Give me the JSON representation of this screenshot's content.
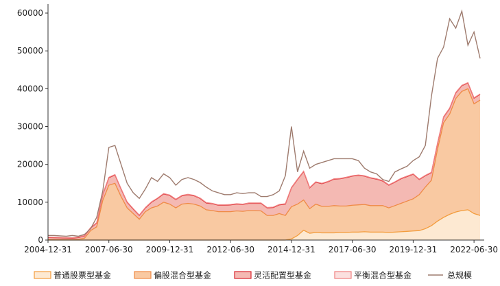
{
  "chart_data": {
    "type": "area",
    "title": "",
    "xlabel": "",
    "ylabel": "",
    "ylim": [
      0,
      62000
    ],
    "yticks": [
      0,
      10000,
      20000,
      30000,
      40000,
      50000,
      60000
    ],
    "xticks": [
      {
        "pos": 0,
        "label": "2004-12-31"
      },
      {
        "pos": 10,
        "label": "2007-06-30"
      },
      {
        "pos": 20,
        "label": "2009-12-31"
      },
      {
        "pos": 30,
        "label": "2012-06-30"
      },
      {
        "pos": 40,
        "label": "2014-12-31"
      },
      {
        "pos": 50,
        "label": "2017-06-30"
      },
      {
        "pos": 60,
        "label": "2019-12-31"
      },
      {
        "pos": 70,
        "label": "2022-06-30"
      }
    ],
    "x": [
      "2004-12-31",
      "2005-03-31",
      "2005-06-30",
      "2005-09-30",
      "2005-12-31",
      "2006-03-31",
      "2006-06-30",
      "2006-09-30",
      "2006-12-31",
      "2007-03-31",
      "2007-06-30",
      "2007-09-30",
      "2007-12-31",
      "2008-03-31",
      "2008-06-30",
      "2008-09-30",
      "2008-12-31",
      "2009-03-31",
      "2009-06-30",
      "2009-09-30",
      "2009-12-31",
      "2010-03-31",
      "2010-06-30",
      "2010-09-30",
      "2010-12-31",
      "2011-03-31",
      "2011-06-30",
      "2011-09-30",
      "2011-12-31",
      "2012-03-31",
      "2012-06-30",
      "2012-09-30",
      "2012-12-31",
      "2013-03-31",
      "2013-06-30",
      "2013-09-30",
      "2013-12-31",
      "2014-03-31",
      "2014-06-30",
      "2014-09-30",
      "2014-12-31",
      "2015-03-31",
      "2015-06-30",
      "2015-09-30",
      "2015-12-31",
      "2016-03-31",
      "2016-06-30",
      "2016-09-30",
      "2016-12-31",
      "2017-03-31",
      "2017-06-30",
      "2017-09-30",
      "2017-12-31",
      "2018-03-31",
      "2018-06-30",
      "2018-09-30",
      "2018-12-31",
      "2019-03-31",
      "2019-06-30",
      "2019-09-30",
      "2019-12-31",
      "2020-03-31",
      "2020-06-30",
      "2020-09-30",
      "2020-12-31",
      "2021-03-31",
      "2021-06-30",
      "2021-09-30",
      "2021-12-31",
      "2022-03-31",
      "2022-06-30",
      "2022-09-30"
    ],
    "series": [
      {
        "name": "普通股票型基金",
        "color": "#f39c3c",
        "fill": "#fde9d2",
        "values": [
          0,
          0,
          0,
          0,
          0,
          0,
          0,
          0,
          0,
          0,
          0,
          0,
          0,
          0,
          0,
          0,
          0,
          0,
          0,
          0,
          0,
          0,
          0,
          0,
          0,
          0,
          0,
          0,
          0,
          0,
          0,
          0,
          0,
          0,
          0,
          0,
          0,
          0,
          0,
          0,
          300,
          1200,
          2600,
          1800,
          2000,
          1900,
          1900,
          1900,
          2000,
          2000,
          2100,
          2100,
          2200,
          2100,
          2100,
          2100,
          2000,
          2100,
          2200,
          2300,
          2400,
          2500,
          3000,
          3800,
          5000,
          6000,
          6800,
          7400,
          7800,
          8000,
          7000,
          6500
        ]
      },
      {
        "name": "偏股混合型基金",
        "color": "#ef8a45",
        "fill": "#f9c9a2",
        "values": [
          150,
          140,
          130,
          120,
          110,
          200,
          500,
          2500,
          3500,
          10500,
          14500,
          15000,
          11500,
          8500,
          7000,
          5500,
          7500,
          8500,
          9000,
          10000,
          9500,
          8500,
          9500,
          9700,
          9500,
          9000,
          8000,
          7800,
          7500,
          7500,
          7500,
          7700,
          7600,
          7800,
          7800,
          7700,
          6500,
          6500,
          7000,
          6500,
          8500,
          8300,
          8000,
          6500,
          7500,
          7000,
          7000,
          7200,
          7000,
          7000,
          7100,
          7200,
          7200,
          7000,
          7000,
          7000,
          6500,
          7000,
          7500,
          8000,
          8500,
          9500,
          11000,
          12000,
          19000,
          25000,
          26500,
          30000,
          31500,
          32000,
          29000,
          30500
        ]
      },
      {
        "name": "灵活配置型基金",
        "color": "#d9262e",
        "fill": "#f4b9b3",
        "values": [
          500,
          480,
          460,
          420,
          400,
          450,
          600,
          700,
          1000,
          1500,
          2000,
          2200,
          2000,
          1500,
          1200,
          1000,
          1000,
          1500,
          2000,
          2200,
          2300,
          2200,
          2200,
          2300,
          2200,
          2000,
          1800,
          1800,
          1700,
          1700,
          1800,
          1800,
          1800,
          1900,
          1900,
          2000,
          2000,
          2100,
          2300,
          3000,
          5000,
          6500,
          7500,
          5500,
          5800,
          6000,
          6500,
          7000,
          7200,
          7500,
          7700,
          7800,
          7500,
          7300,
          7000,
          6500,
          6000,
          6200,
          6500,
          6500,
          6500,
          4000,
          3000,
          2000,
          1500,
          1500,
          1500,
          1500,
          1500,
          1500,
          1500,
          1500
        ]
      },
      {
        "name": "平衡混合型基金",
        "color": "#f08080",
        "fill": "#fbe0df",
        "values": [
          100,
          100,
          100,
          100,
          100,
          100,
          100,
          100,
          100,
          100,
          100,
          100,
          100,
          100,
          100,
          100,
          100,
          100,
          100,
          100,
          100,
          100,
          100,
          100,
          100,
          100,
          100,
          100,
          100,
          100,
          100,
          100,
          100,
          100,
          100,
          100,
          100,
          100,
          100,
          100,
          100,
          100,
          100,
          100,
          100,
          100,
          100,
          100,
          100,
          100,
          100,
          100,
          100,
          100,
          100,
          100,
          100,
          100,
          100,
          100,
          100,
          100,
          100,
          100,
          100,
          100,
          100,
          100,
          100,
          100,
          100,
          100
        ]
      },
      {
        "name": "总规模",
        "color": "#9e7b6e",
        "type": "line",
        "values": [
          1200,
          1200,
          1100,
          1000,
          1200,
          1000,
          1500,
          3000,
          6000,
          13000,
          24500,
          25000,
          20000,
          15000,
          12500,
          11000,
          13500,
          16500,
          15500,
          17500,
          16500,
          14500,
          16000,
          16500,
          16000,
          15200,
          14000,
          13000,
          12500,
          12000,
          12000,
          12500,
          12300,
          12500,
          12500,
          11500,
          11500,
          12000,
          13000,
          17000,
          30000,
          18000,
          23500,
          19000,
          20000,
          20500,
          21000,
          21500,
          21500,
          21500,
          21500,
          21000,
          19000,
          18000,
          17500,
          16000,
          15500,
          18000,
          18800,
          19500,
          21000,
          22000,
          25000,
          38000,
          48000,
          51000,
          58500,
          56000,
          60500,
          51500,
          55000,
          48000
        ]
      }
    ],
    "legend": {
      "position": "bottom"
    },
    "grid": false
  }
}
